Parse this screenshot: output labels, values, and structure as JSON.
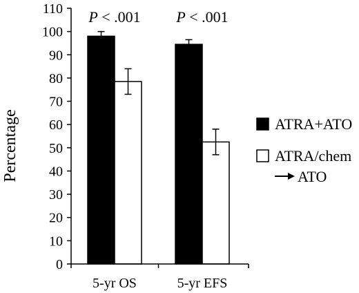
{
  "chart_data": {
    "type": "bar",
    "categories": [
      "5-yr OS",
      "5-yr EFS"
    ],
    "series": [
      {
        "name": "ATRA+ATO",
        "values": [
          98,
          94.5
        ],
        "errors": [
          2,
          2
        ],
        "fill": "#000000"
      },
      {
        "name": "ATRA/chem",
        "name_line2": "ATO",
        "values": [
          78.5,
          52.5
        ],
        "errors": [
          5.5,
          5.5
        ],
        "fill": "#ffffff"
      }
    ],
    "annotations": [
      "P",
      " < .001"
    ],
    "ylabel": "Percentage",
    "ylim": [
      0,
      110
    ],
    "yticks": [
      "0",
      "10",
      "20",
      "30",
      "40",
      "50",
      "60",
      "70",
      "80",
      "90",
      "100",
      "110"
    ],
    "grid": false,
    "legend_position": "right"
  }
}
